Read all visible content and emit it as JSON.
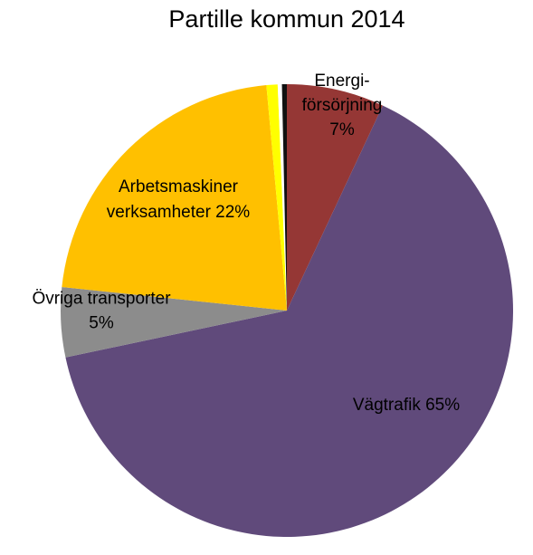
{
  "chart_data": {
    "type": "pie",
    "title": "Partille kommun 2014",
    "slices": [
      {
        "label_lines": [
          "Energi-",
          "försörjning",
          "7%"
        ],
        "value": 7,
        "color": "#953735"
      },
      {
        "label_lines": [
          "Vägtrafik 65%"
        ],
        "value": 65,
        "color": "#604a7b"
      },
      {
        "label_lines": [
          "Övriga transporter",
          "5%"
        ],
        "value": 5,
        "color": "#8c8c8c"
      },
      {
        "label_lines": [
          "Arbetsmaskiner",
          "verksamheter 22%"
        ],
        "value": 22,
        "color": "#ffc000"
      },
      {
        "label_lines": [],
        "value": 0.8,
        "color": "#ffff00"
      },
      {
        "label_lines": [],
        "value": 0.3,
        "color": "#ffffff"
      },
      {
        "label_lines": [],
        "value": 0.35,
        "color": "#111111"
      }
    ]
  }
}
